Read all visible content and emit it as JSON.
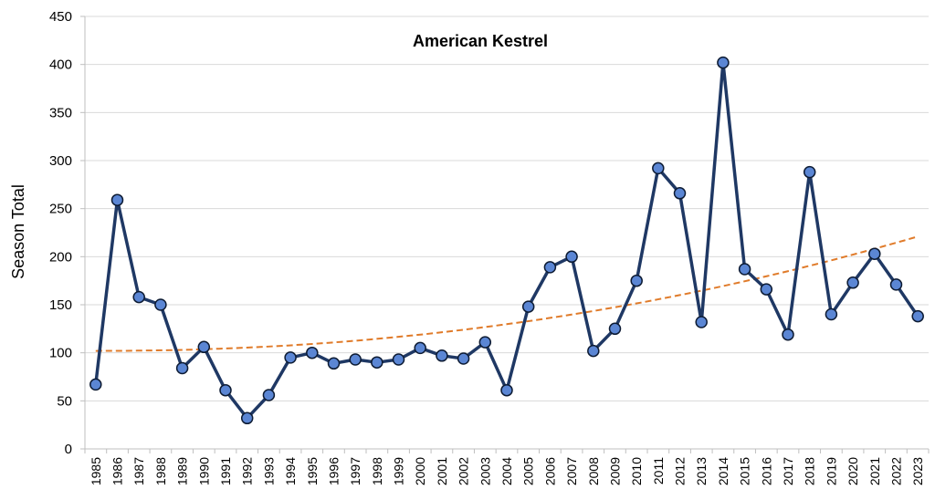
{
  "chart_data": {
    "type": "line",
    "title": "American Kestrel",
    "ylabel": "Season Total",
    "xlabel": "",
    "ylim": [
      0,
      450
    ],
    "ytick_step": 50,
    "grid": "horizontal",
    "categories": [
      "1985",
      "1986",
      "1987",
      "1988",
      "1989",
      "1990",
      "1991",
      "1992",
      "1993",
      "1994",
      "1995",
      "1996",
      "1997",
      "1998",
      "1999",
      "2000",
      "2001",
      "2002",
      "2003",
      "2004",
      "2005",
      "2006",
      "2007",
      "2008",
      "2009",
      "2010",
      "2011",
      "2012",
      "2013",
      "2014",
      "2015",
      "2016",
      "2017",
      "2018",
      "2019",
      "2020",
      "2021",
      "2022",
      "2023"
    ],
    "series": [
      {
        "values": [
          67,
          259,
          158,
          150,
          84,
          106,
          61,
          32,
          56,
          95,
          100,
          89,
          93,
          90,
          93,
          105,
          97,
          94,
          111,
          61,
          148,
          189,
          200,
          102,
          125,
          175,
          292,
          266,
          132,
          402,
          187,
          166,
          119,
          288,
          140,
          173,
          203,
          171,
          138
        ],
        "line_color": "#1f3864",
        "marker_color": "#5b86d4"
      }
    ],
    "trendline": {
      "style": "dashed",
      "color": "#e07b2a",
      "start": 102,
      "end": 221
    }
  }
}
